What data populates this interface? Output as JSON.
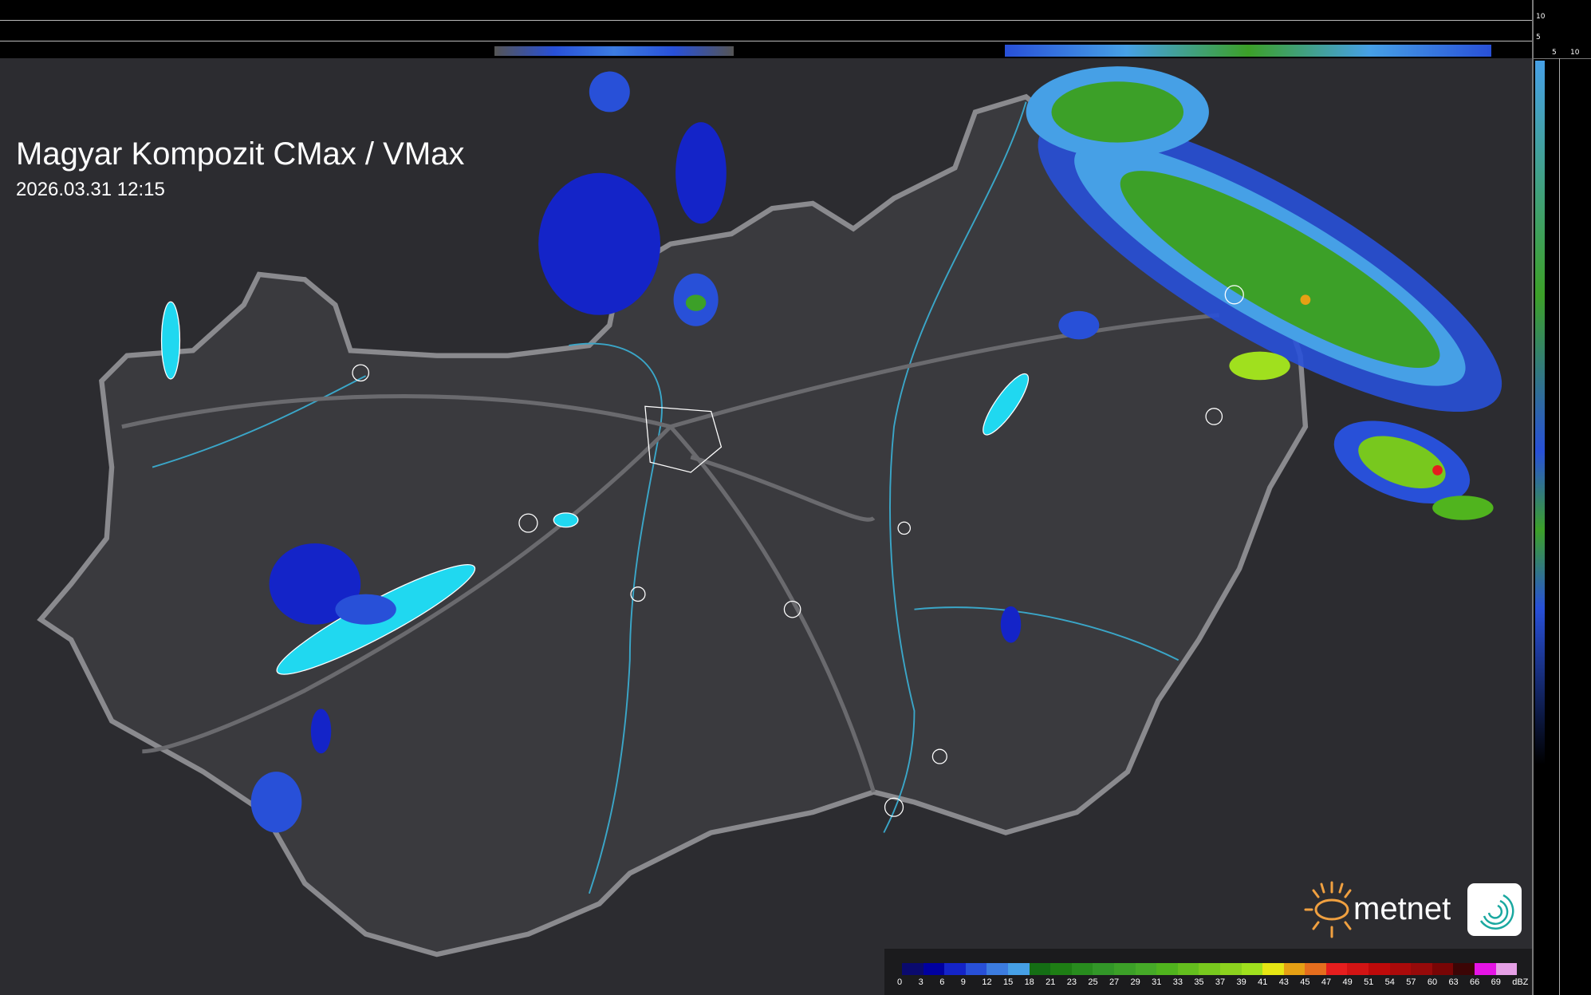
{
  "title": "Magyar Kompozit CMax / VMax",
  "timestamp": "2026.03.31 12:15",
  "side_profile": {
    "top_ticks": [
      "10",
      "5"
    ],
    "right_ticks": [
      "5",
      "10"
    ]
  },
  "logo": {
    "brand": "metnet",
    "brand_color": "#f0a040",
    "icon": "radar-swirl-icon"
  },
  "colors": {
    "background": "#2c2c30",
    "border": "#8a8a8e",
    "rivers": "#3aa6c8",
    "lakes": "#20d8f0",
    "cities": "#ffffff"
  },
  "legend": {
    "unit": "dBZ",
    "labels": [
      "0",
      "3",
      "6",
      "9",
      "12",
      "15",
      "18",
      "21",
      "23",
      "25",
      "27",
      "29",
      "31",
      "33",
      "35",
      "37",
      "39",
      "41",
      "43",
      "45",
      "47",
      "49",
      "51",
      "54",
      "57",
      "60",
      "63",
      "66",
      "69"
    ],
    "colors": [
      "#0a0a6e",
      "#0000a0",
      "#1424c8",
      "#2850d8",
      "#3c7ce0",
      "#46a0e6",
      "#146e14",
      "#1e7e14",
      "#288c1e",
      "#329628",
      "#3ca028",
      "#46aa28",
      "#50b41e",
      "#64be1e",
      "#78c81e",
      "#8cd21e",
      "#a0e01e",
      "#e6e614",
      "#e6a014",
      "#e66e1e",
      "#e61e1e",
      "#d21414",
      "#be0a0a",
      "#aa0a0a",
      "#960a0a",
      "#780505",
      "#3c0505",
      "#e614e6",
      "#e6a0e6",
      "#8ce6e6"
    ]
  }
}
